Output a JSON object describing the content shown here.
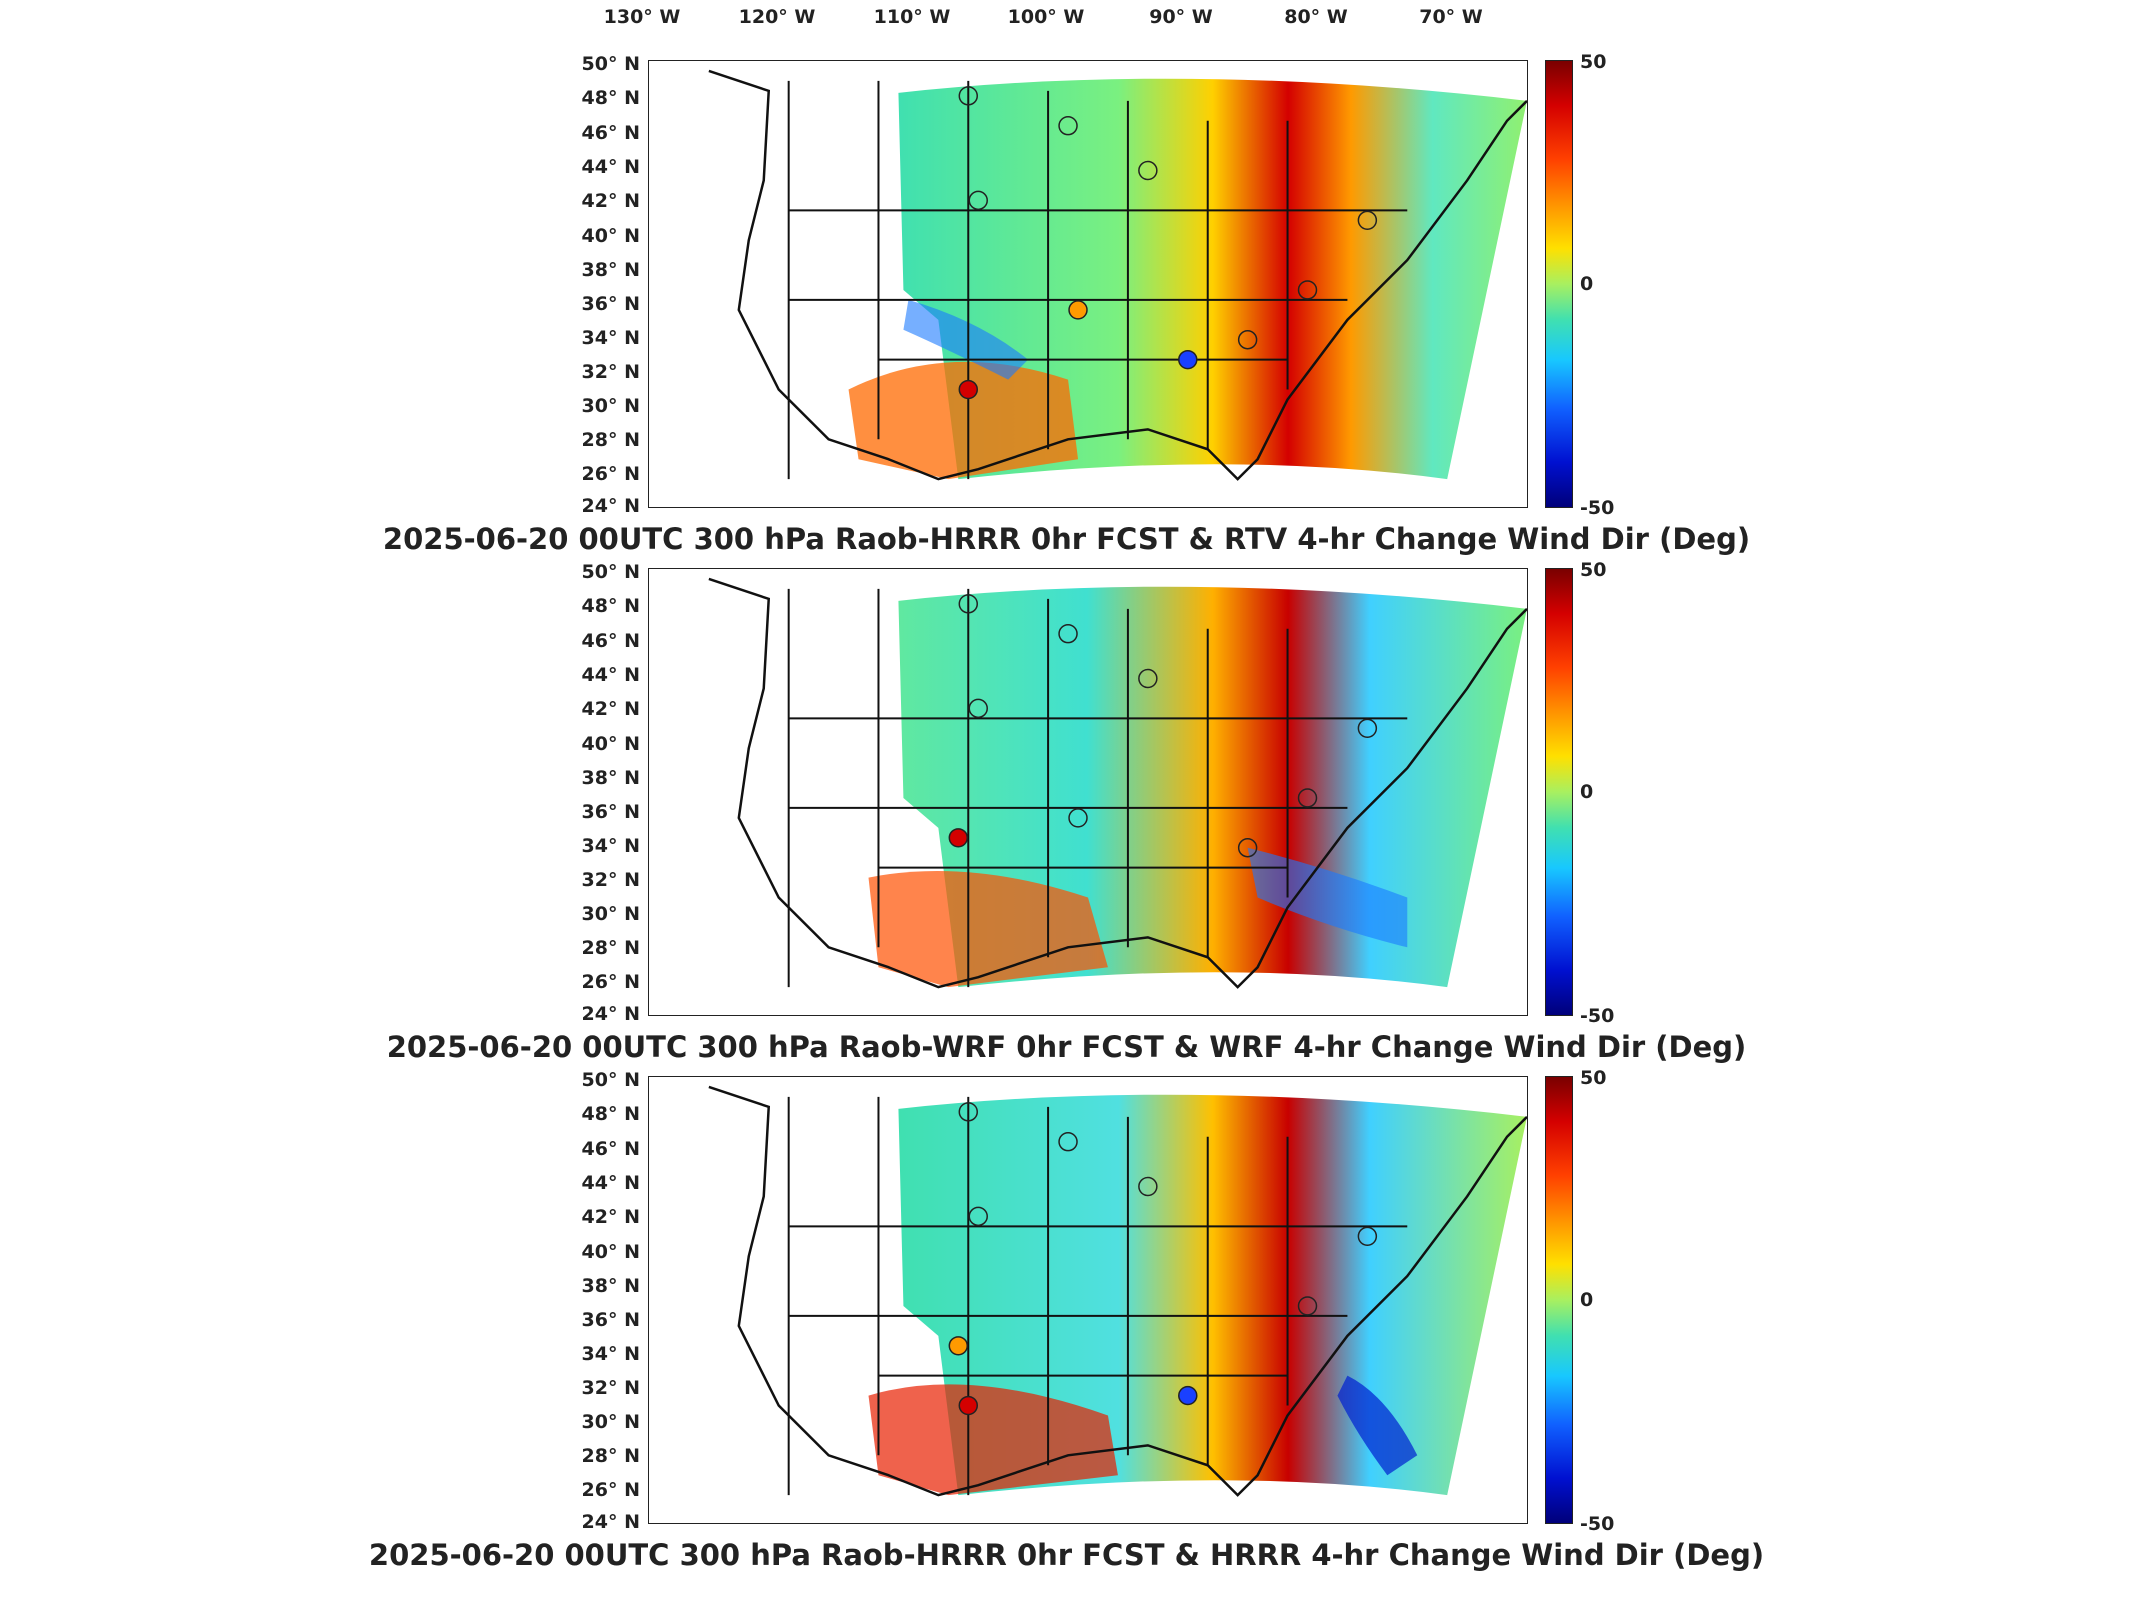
{
  "top_longitudes": [
    "130° W",
    "120° W",
    "110° W",
    "100° W",
    "90° W",
    "80° W",
    "70° W"
  ],
  "latitudes": [
    "50° N",
    "48° N",
    "46° N",
    "44° N",
    "42° N",
    "40° N",
    "38° N",
    "36° N",
    "34° N",
    "32° N",
    "30° N",
    "28° N",
    "26° N",
    "24° N"
  ],
  "colorbar": {
    "max": "50",
    "mid": "0",
    "min": "-50"
  },
  "panels": [
    {
      "title": "2025-06-20 00UTC 300 hPa Raob-HRRR 0hr FCST & RTV 4-hr Change Wind Dir (Deg)"
    },
    {
      "title": "2025-06-20 00UTC 300 hPa Raob-WRF 0hr FCST & WRF 4-hr Change Wind Dir (Deg)"
    },
    {
      "title": "2025-06-20 00UTC 300 hPa Raob-HRRR 0hr FCST & HRRR 4-hr Change Wind Dir (Deg)"
    }
  ],
  "colors": {
    "background_field": "#40e0b0",
    "warm_band": "#d40000",
    "cool_band": "#18c8ff",
    "outline": "#111111"
  }
}
